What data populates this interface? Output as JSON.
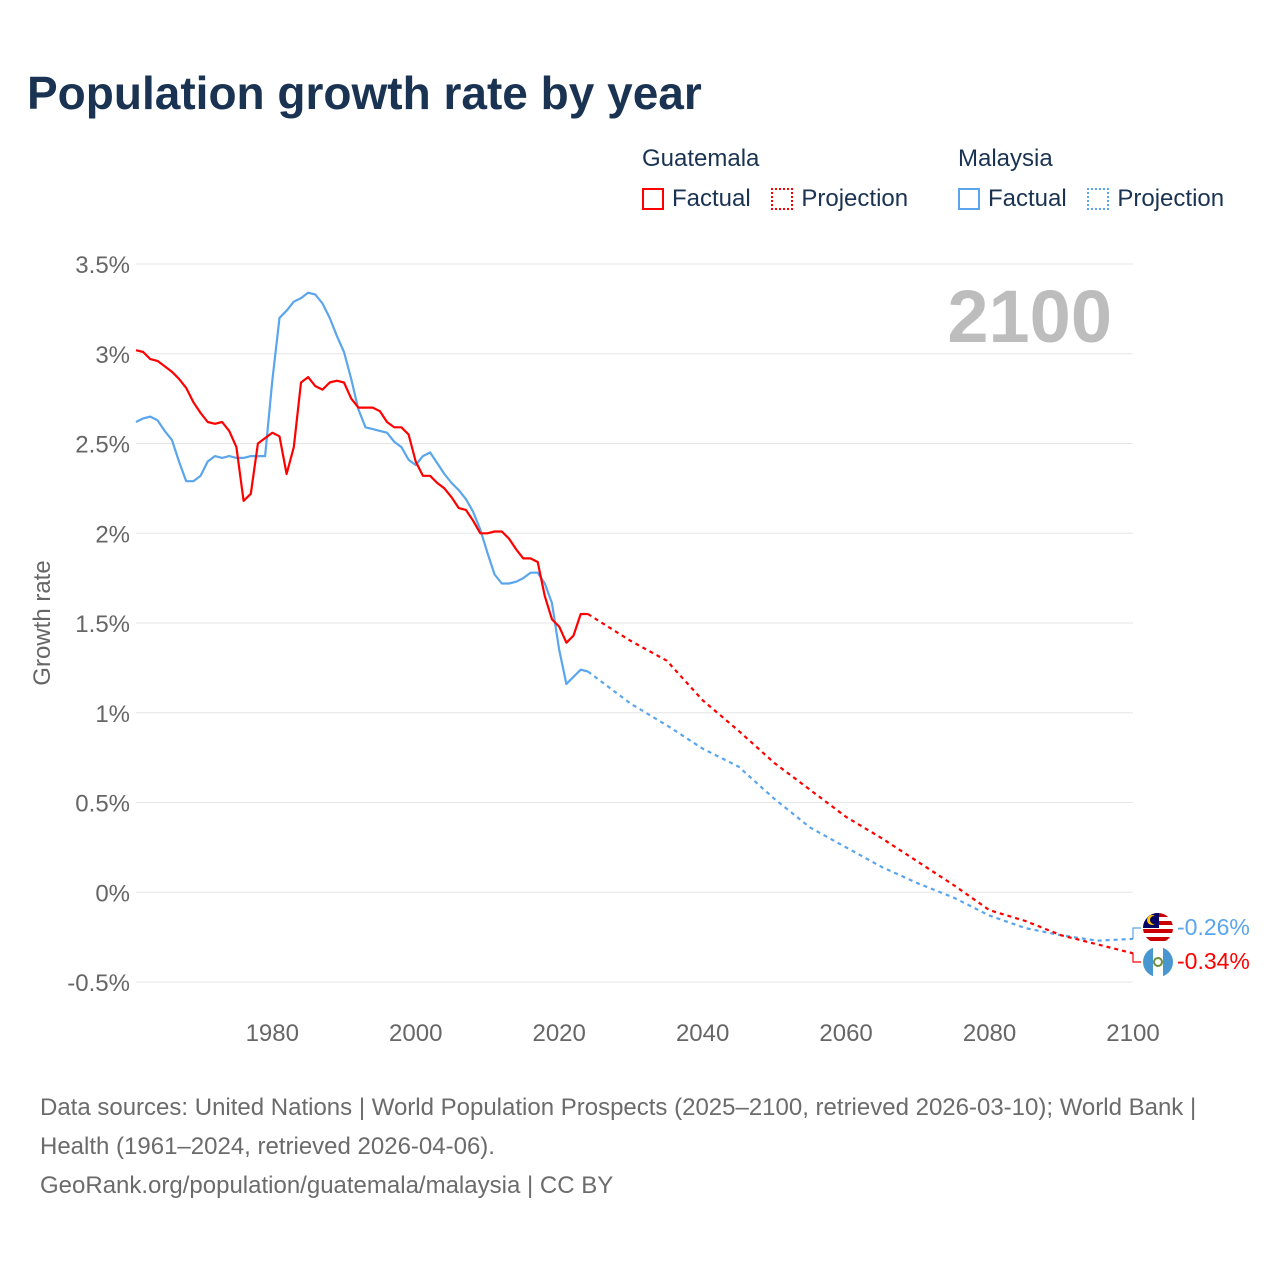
{
  "title": "Population growth rate by year",
  "legend": {
    "groups": [
      {
        "name": "Guatemala",
        "color": "#ff0000",
        "factual_label": "Factual",
        "projection_label": "Projection"
      },
      {
        "name": "Malaysia",
        "color": "#5aa5ec",
        "factual_label": "Factual",
        "projection_label": "Projection"
      }
    ]
  },
  "year_display": "2100",
  "footer": {
    "sources": "Data sources: United Nations | World Population Prospects (2025–2100, retrieved 2026-03-10); World Bank | Health (1961–2024, retrieved 2026-04-06).",
    "credit": "GeoRank.org/population/guatemala/malaysia | CC BY"
  },
  "chart_data": {
    "type": "line",
    "title": "Population growth rate by year",
    "xlabel": "",
    "ylabel": "Growth rate",
    "xlim": [
      1961,
      2100
    ],
    "ylim": [
      -0.5,
      3.5
    ],
    "x_ticks": [
      1980,
      2000,
      2020,
      2040,
      2060,
      2080,
      2100
    ],
    "x_tick_labels": [
      "1980",
      "2000",
      "2020",
      "2040",
      "2060",
      "2080",
      "2100"
    ],
    "y_ticks": [
      -0.5,
      0,
      0.5,
      1,
      1.5,
      2,
      2.5,
      3,
      3.5
    ],
    "y_tick_labels": [
      "-0.5%",
      "0%",
      "0.5%",
      "1%",
      "1.5%",
      "2%",
      "2.5%",
      "3%",
      "3.5%"
    ],
    "grid": true,
    "legend_position": "top-right",
    "series": [
      {
        "name": "Guatemala",
        "color": "#ff0000",
        "end_label": "-0.34%",
        "factual": {
          "x": [
            1961,
            1962,
            1963,
            1964,
            1965,
            1966,
            1967,
            1968,
            1969,
            1970,
            1971,
            1972,
            1973,
            1974,
            1975,
            1976,
            1977,
            1978,
            1979,
            1980,
            1981,
            1982,
            1983,
            1984,
            1985,
            1986,
            1987,
            1988,
            1989,
            1990,
            1991,
            1992,
            1993,
            1994,
            1995,
            1996,
            1997,
            1998,
            1999,
            2000,
            2001,
            2002,
            2003,
            2004,
            2005,
            2006,
            2007,
            2008,
            2009,
            2010,
            2011,
            2012,
            2013,
            2014,
            2015,
            2016,
            2017,
            2018,
            2019,
            2020,
            2021,
            2022,
            2023,
            2024
          ],
          "y": [
            3.02,
            3.01,
            2.97,
            2.96,
            2.93,
            2.9,
            2.86,
            2.81,
            2.73,
            2.67,
            2.62,
            2.61,
            2.62,
            2.57,
            2.48,
            2.18,
            2.22,
            2.5,
            2.53,
            2.56,
            2.54,
            2.33,
            2.48,
            2.84,
            2.87,
            2.82,
            2.8,
            2.84,
            2.85,
            2.84,
            2.75,
            2.7,
            2.7,
            2.7,
            2.68,
            2.62,
            2.59,
            2.59,
            2.55,
            2.4,
            2.32,
            2.32,
            2.28,
            2.25,
            2.2,
            2.14,
            2.13,
            2.07,
            2.0,
            2.0,
            2.01,
            2.01,
            1.97,
            1.91,
            1.86,
            1.86,
            1.84,
            1.65,
            1.52,
            1.48,
            1.39,
            1.43,
            1.55,
            1.55
          ]
        },
        "projection": {
          "x": [
            2024,
            2030,
            2035,
            2040,
            2045,
            2050,
            2055,
            2060,
            2065,
            2070,
            2075,
            2080,
            2085,
            2090,
            2095,
            2100
          ],
          "y": [
            1.55,
            1.4,
            1.29,
            1.07,
            0.9,
            0.72,
            0.57,
            0.42,
            0.3,
            0.17,
            0.04,
            -0.1,
            -0.16,
            -0.24,
            -0.29,
            -0.34
          ]
        }
      },
      {
        "name": "Malaysia",
        "color": "#5aa5ec",
        "end_label": "-0.26%",
        "factual": {
          "x": [
            1961,
            1962,
            1963,
            1964,
            1965,
            1966,
            1967,
            1968,
            1969,
            1970,
            1971,
            1972,
            1973,
            1974,
            1975,
            1976,
            1977,
            1978,
            1979,
            1980,
            1981,
            1982,
            1983,
            1984,
            1985,
            1986,
            1987,
            1988,
            1989,
            1990,
            1991,
            1992,
            1993,
            1994,
            1995,
            1996,
            1997,
            1998,
            1999,
            2000,
            2001,
            2002,
            2003,
            2004,
            2005,
            2006,
            2007,
            2008,
            2009,
            2010,
            2011,
            2012,
            2013,
            2014,
            2015,
            2016,
            2017,
            2018,
            2019,
            2020,
            2021,
            2022,
            2023,
            2024
          ],
          "y": [
            2.62,
            2.64,
            2.65,
            2.63,
            2.57,
            2.52,
            2.4,
            2.29,
            2.29,
            2.32,
            2.4,
            2.43,
            2.42,
            2.43,
            2.42,
            2.42,
            2.43,
            2.43,
            2.43,
            2.85,
            3.2,
            3.24,
            3.29,
            3.31,
            3.34,
            3.33,
            3.28,
            3.2,
            3.1,
            3.01,
            2.86,
            2.69,
            2.59,
            2.58,
            2.57,
            2.56,
            2.51,
            2.48,
            2.41,
            2.38,
            2.43,
            2.45,
            2.39,
            2.33,
            2.28,
            2.24,
            2.19,
            2.12,
            2.02,
            1.89,
            1.77,
            1.72,
            1.72,
            1.73,
            1.75,
            1.78,
            1.78,
            1.72,
            1.61,
            1.35,
            1.16,
            1.2,
            1.24,
            1.23
          ]
        },
        "projection": {
          "x": [
            2024,
            2030,
            2035,
            2040,
            2045,
            2050,
            2055,
            2060,
            2065,
            2070,
            2075,
            2080,
            2085,
            2090,
            2095,
            2100
          ],
          "y": [
            1.23,
            1.05,
            0.93,
            0.8,
            0.7,
            0.52,
            0.36,
            0.25,
            0.14,
            0.05,
            -0.03,
            -0.13,
            -0.2,
            -0.24,
            -0.27,
            -0.26
          ]
        }
      }
    ]
  }
}
